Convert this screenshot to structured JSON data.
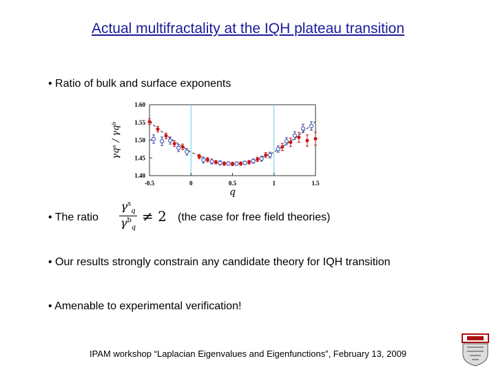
{
  "slide": {
    "title": "Actual multifractality at the IQH plateau transition",
    "bullet1": "• Ratio of bulk and surface exponents",
    "bullet2_prefix": "• The ratio",
    "bullet2_suffix": "(the case for free field theories)",
    "bullet3": "• Our results strongly constrain any candidate theory for IQH transition",
    "bullet4": "• Amenable to experimental verification!",
    "footer": "IPAM workshop “Laplacian Eigenvalues and Eigenfunctions”, February 13, 2009"
  },
  "formula": {
    "numerator": "γ",
    "numerator_sup": "s",
    "numerator_sub": "q",
    "denominator": "γ",
    "denominator_sup": "b",
    "denominator_sub": "q",
    "relation": "≠ 2"
  },
  "chart_data": {
    "type": "scatter",
    "xlabel": "q",
    "ylabel": "γqˢ / γqᵇ",
    "xlim": [
      -0.5,
      1.5
    ],
    "ylim": [
      1.4,
      1.6
    ],
    "xticks": [
      "-0.5",
      "0",
      "0.5",
      "1",
      "1.5"
    ],
    "yticks": [
      "1.40",
      "1.45",
      "1.50",
      "1.55",
      "1.60"
    ],
    "vlines": [
      0,
      1
    ],
    "colors": {
      "red": "#cc1111",
      "blue": "#3344aa",
      "vline": "#66ccdd",
      "curve": "#222222"
    },
    "series": [
      {
        "color": "red",
        "marker": "filled-circle",
        "x": [
          -0.5,
          -0.4,
          -0.3,
          -0.2,
          -0.1,
          0.1,
          0.2,
          0.3,
          0.4,
          0.5,
          0.6,
          0.7,
          0.8,
          0.9,
          1.1,
          1.2,
          1.3,
          1.4,
          1.5
        ],
        "y": [
          1.552,
          1.531,
          1.512,
          1.49,
          1.481,
          1.454,
          1.445,
          1.438,
          1.434,
          1.433,
          1.434,
          1.438,
          1.446,
          1.458,
          1.481,
          1.494,
          1.508,
          1.499,
          1.504
        ],
        "err": [
          0.008,
          0.008,
          0.008,
          0.008,
          0.008,
          0.006,
          0.006,
          0.005,
          0.005,
          0.005,
          0.005,
          0.005,
          0.006,
          0.007,
          0.01,
          0.012,
          0.014,
          0.016,
          0.018
        ]
      },
      {
        "color": "blue",
        "marker": "open-circle",
        "x": [
          -0.45,
          -0.35,
          -0.25,
          -0.15,
          -0.05,
          0.15,
          0.25,
          0.35,
          0.45,
          0.55,
          0.65,
          0.75,
          0.85,
          0.95,
          1.05,
          1.15,
          1.25,
          1.35,
          1.45
        ],
        "y": [
          1.503,
          1.497,
          1.499,
          1.478,
          1.467,
          1.444,
          1.44,
          1.436,
          1.434,
          1.434,
          1.436,
          1.441,
          1.448,
          1.458,
          1.475,
          1.497,
          1.513,
          1.533,
          1.54
        ],
        "err": [
          0.012,
          0.012,
          0.01,
          0.01,
          0.009,
          0.008,
          0.007,
          0.006,
          0.005,
          0.005,
          0.005,
          0.006,
          0.007,
          0.008,
          0.009,
          0.01,
          0.011,
          0.012,
          0.012
        ]
      }
    ],
    "fit_curve": {
      "style": "dashed",
      "x": [
        -0.5,
        -0.25,
        0,
        0.25,
        0.5,
        0.75,
        1,
        1.25,
        1.5
      ],
      "y": [
        1.552,
        1.505,
        1.466,
        1.441,
        1.432,
        1.441,
        1.466,
        1.505,
        1.552
      ]
    }
  }
}
